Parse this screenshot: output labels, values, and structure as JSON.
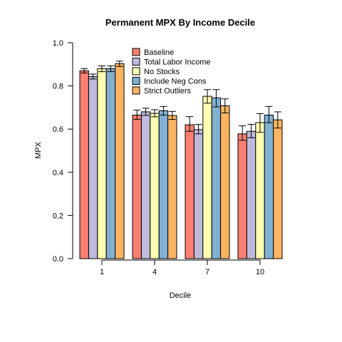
{
  "chart_data": {
    "type": "bar",
    "title": "Permanent MPX By Income Decile",
    "xlabel": "Decile",
    "ylabel": "MPX",
    "categories": [
      "1",
      "4",
      "7",
      "10"
    ],
    "ylim": [
      0,
      1
    ],
    "yticks": [
      "0.0",
      "0.2",
      "0.4",
      "0.6",
      "0.8",
      "1.0"
    ],
    "legend_position": "top-left",
    "grid": false,
    "series": [
      {
        "name": "Baseline",
        "color": "#FB8072",
        "values": [
          0.87,
          0.665,
          0.62,
          0.578
        ],
        "err_low": [
          0.86,
          0.645,
          0.59,
          0.548
        ],
        "err_high": [
          0.88,
          0.688,
          0.658,
          0.615
        ]
      },
      {
        "name": "Total Labor Income",
        "color": "#BEBADA",
        "values": [
          0.843,
          0.68,
          0.598,
          0.59
        ],
        "err_low": [
          0.832,
          0.664,
          0.578,
          0.56
        ],
        "err_high": [
          0.855,
          0.697,
          0.622,
          0.622
        ]
      },
      {
        "name": "No Stocks",
        "color": "#FFFFB3",
        "values": [
          0.88,
          0.673,
          0.752,
          0.63
        ],
        "err_low": [
          0.866,
          0.657,
          0.72,
          0.585
        ],
        "err_high": [
          0.893,
          0.69,
          0.783,
          0.672
        ]
      },
      {
        "name": "Include Neg Cons",
        "color": "#80B1D3",
        "values": [
          0.88,
          0.685,
          0.745,
          0.665
        ],
        "err_low": [
          0.866,
          0.665,
          0.703,
          0.63
        ],
        "err_high": [
          0.893,
          0.705,
          0.783,
          0.705
        ]
      },
      {
        "name": "Strict Outliers",
        "color": "#FDB462",
        "values": [
          0.903,
          0.663,
          0.708,
          0.643
        ],
        "err_low": [
          0.89,
          0.645,
          0.675,
          0.605
        ],
        "err_high": [
          0.915,
          0.682,
          0.74,
          0.68
        ]
      }
    ]
  }
}
